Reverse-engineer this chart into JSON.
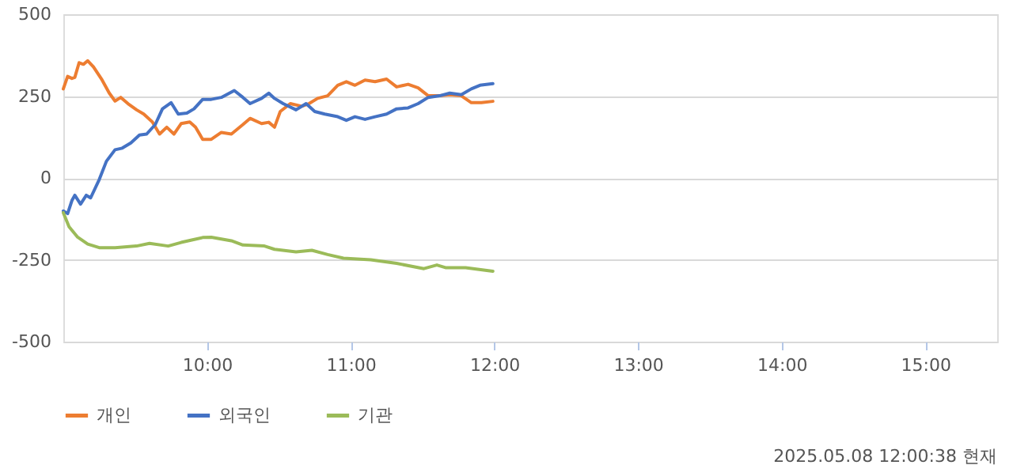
{
  "chart_data": {
    "type": "line",
    "xlim": [
      9,
      15.5
    ],
    "xticks": [
      {
        "value": 10,
        "label": "10:00"
      },
      {
        "value": 11,
        "label": "11:00"
      },
      {
        "value": 12,
        "label": "12:00"
      },
      {
        "value": 13,
        "label": "13:00"
      },
      {
        "value": 14,
        "label": "14:00"
      },
      {
        "value": 15,
        "label": "15:00"
      }
    ],
    "ylim": [
      -500,
      500
    ],
    "yticks": [
      -500,
      -250,
      0,
      250,
      500
    ],
    "grid": "y",
    "legend": "bottom",
    "line_style": "solid",
    "marker": "none",
    "annotations": [
      "2025.05.08 12:00:38 현재"
    ],
    "series": [
      {
        "name": "개인",
        "color": "#ed7d31",
        "x": [
          9.0,
          9.03,
          9.06,
          9.08,
          9.11,
          9.14,
          9.17,
          9.21,
          9.27,
          9.32,
          9.36,
          9.4,
          9.45,
          9.51,
          9.56,
          9.62,
          9.67,
          9.72,
          9.77,
          9.82,
          9.88,
          9.92,
          9.97,
          10.03,
          10.1,
          10.17,
          10.25,
          10.3,
          10.38,
          10.43,
          10.47,
          10.51,
          10.58,
          10.66,
          10.71,
          10.77,
          10.84,
          10.91,
          10.97,
          11.03,
          11.1,
          11.17,
          11.25,
          11.32,
          11.4,
          11.47,
          11.54,
          11.62,
          11.69,
          11.77,
          11.84,
          11.91,
          11.99
        ],
        "values": [
          272,
          310,
          304,
          307,
          352,
          347,
          358,
          339,
          299,
          259,
          235,
          246,
          227,
          208,
          195,
          171,
          134,
          155,
          134,
          166,
          171,
          155,
          118,
          118,
          139,
          134,
          163,
          182,
          166,
          170,
          155,
          203,
          227,
          219,
          227,
          243,
          251,
          283,
          294,
          283,
          299,
          294,
          302,
          278,
          286,
          275,
          251,
          251,
          254,
          251,
          230,
          230,
          234
        ]
      },
      {
        "name": "외국인",
        "color": "#4472c4",
        "x": [
          9.0,
          9.03,
          9.06,
          9.08,
          9.12,
          9.16,
          9.19,
          9.25,
          9.3,
          9.36,
          9.41,
          9.47,
          9.53,
          9.58,
          9.64,
          9.69,
          9.75,
          9.8,
          9.86,
          9.91,
          9.97,
          10.03,
          10.1,
          10.19,
          10.25,
          10.3,
          10.38,
          10.43,
          10.47,
          10.53,
          10.62,
          10.69,
          10.75,
          10.82,
          10.91,
          10.97,
          11.03,
          11.1,
          11.17,
          11.25,
          11.32,
          11.4,
          11.47,
          11.54,
          11.62,
          11.69,
          11.77,
          11.84,
          11.9,
          11.99
        ],
        "values": [
          -101,
          -109,
          -69,
          -53,
          -80,
          -53,
          -61,
          -5,
          51,
          86,
          91,
          107,
          131,
          134,
          163,
          211,
          230,
          195,
          198,
          211,
          240,
          240,
          246,
          267,
          246,
          227,
          243,
          259,
          243,
          227,
          208,
          227,
          203,
          195,
          187,
          176,
          187,
          179,
          187,
          195,
          211,
          214,
          227,
          246,
          251,
          259,
          254,
          272,
          283,
          288
        ]
      },
      {
        "name": "기관",
        "color": "#9bbb59",
        "x": [
          9.0,
          9.04,
          9.1,
          9.17,
          9.25,
          9.36,
          9.51,
          9.6,
          9.73,
          9.82,
          9.9,
          9.97,
          10.03,
          10.17,
          10.25,
          10.4,
          10.47,
          10.62,
          10.73,
          10.84,
          10.95,
          11.14,
          11.32,
          11.51,
          11.6,
          11.66,
          11.8,
          11.99
        ],
        "values": [
          -106,
          -149,
          -181,
          -202,
          -213,
          -213,
          -208,
          -200,
          -208,
          -197,
          -189,
          -182,
          -181,
          -192,
          -205,
          -208,
          -218,
          -226,
          -221,
          -234,
          -245,
          -250,
          -261,
          -277,
          -266,
          -274,
          -274,
          -285
        ]
      }
    ]
  }
}
